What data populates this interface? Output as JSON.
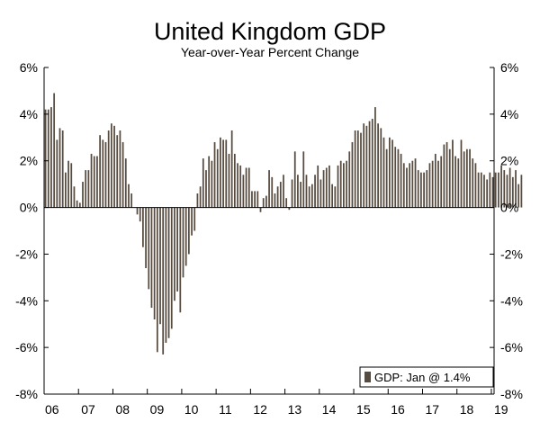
{
  "chart_data": {
    "type": "bar",
    "title": "United Kingdom GDP",
    "subtitle": "Year-over-Year Percent Change",
    "xlabel": "",
    "ylabel": "",
    "ylim": [
      -8,
      6
    ],
    "yticks": [
      6,
      4,
      2,
      0,
      -2,
      -4,
      -6,
      -8
    ],
    "ytick_labels": [
      "6%",
      "4%",
      "2%",
      "0%",
      "-2%",
      "-4%",
      "-6%",
      "-8%"
    ],
    "x_tick_labels": [
      "06",
      "07",
      "08",
      "09",
      "10",
      "11",
      "12",
      "13",
      "14",
      "15",
      "16",
      "17",
      "18",
      "19"
    ],
    "x_start_year": 2006,
    "x_end_year": 2019.08,
    "grid": false,
    "legend_position": "bottom-right",
    "color": "#574b3f",
    "series": [
      {
        "name": "GDP: Jan @ 1.4%",
        "frequency": "monthly",
        "start": "2006-01",
        "values": [
          4.2,
          4.2,
          4.3,
          4.9,
          2.9,
          3.4,
          3.3,
          1.5,
          2.0,
          1.9,
          0.9,
          0.3,
          0.2,
          1.1,
          1.6,
          1.6,
          2.3,
          2.2,
          2.2,
          3.1,
          2.9,
          2.8,
          3.3,
          3.6,
          3.5,
          3.1,
          3.3,
          2.8,
          2.1,
          1.0,
          0.6,
          0.0,
          -0.3,
          -0.6,
          -1.7,
          -2.6,
          -3.5,
          -4.3,
          -4.8,
          -6.2,
          -5.0,
          -6.3,
          -5.8,
          -5.6,
          -5.2,
          -4.0,
          -3.6,
          -4.5,
          -3.0,
          -2.5,
          -2.0,
          -1.2,
          -1.0,
          0.6,
          0.9,
          2.1,
          1.6,
          2.2,
          2.0,
          2.8,
          2.5,
          3.0,
          2.9,
          2.9,
          2.3,
          3.3,
          2.3,
          1.9,
          1.8,
          1.4,
          1.7,
          1.7,
          0.7,
          0.7,
          0.7,
          -0.2,
          0.4,
          0.5,
          1.6,
          1.3,
          0.6,
          0.9,
          1.1,
          1.4,
          0.4,
          -0.1,
          1.2,
          2.4,
          1.4,
          1.1,
          2.4,
          1.4,
          0.9,
          1.0,
          1.4,
          1.8,
          1.2,
          1.6,
          1.7,
          1.8,
          1.0,
          0.9,
          1.8,
          2.0,
          1.9,
          2.0,
          2.4,
          2.8,
          3.3,
          3.3,
          3.2,
          3.6,
          3.5,
          3.7,
          3.8,
          4.3,
          3.6,
          3.4,
          3.0,
          2.5,
          3.0,
          2.9,
          2.6,
          2.5,
          2.3,
          1.9,
          1.7,
          1.9,
          2.0,
          2.1,
          1.6,
          1.5,
          1.5,
          1.6,
          1.9,
          2.0,
          2.3,
          2.0,
          2.2,
          2.7,
          2.8,
          2.5,
          2.9,
          2.2,
          2.1,
          2.9,
          2.4,
          2.5,
          2.5,
          2.1,
          1.9,
          1.5,
          1.5,
          1.4,
          1.2,
          1.5,
          1.3,
          1.5,
          1.5,
          1.8,
          1.6,
          1.4,
          1.7,
          1.3,
          1.6,
          1.0,
          1.4
        ]
      }
    ]
  }
}
